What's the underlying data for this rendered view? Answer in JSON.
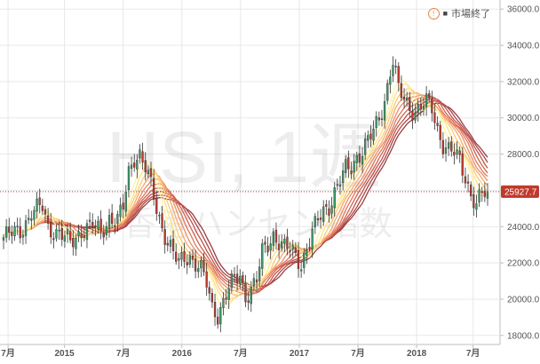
{
  "status": {
    "icon": "warning-icon",
    "square_icon": "square-icon",
    "text": "市場終了"
  },
  "watermark": {
    "line1": "HSI, 1週",
    "line2": "香港ハンセン指数"
  },
  "price_label": "25927.7",
  "colors": {
    "up": "#3d9b66",
    "down": "#c0392b",
    "price_line": "#c0392b",
    "price_box": "#c0392b",
    "grid": "#e8e8e8",
    "ribbon": [
      "#fff3a0",
      "#fde08b",
      "#fbc97a",
      "#f5a96c",
      "#ec8e63",
      "#e0765a",
      "#d06252",
      "#bf524b",
      "#ad4645",
      "#9d3d3f"
    ]
  },
  "chart_data": {
    "type": "candlestick",
    "title": "",
    "ylim": [
      17500,
      36500
    ],
    "y_ticks": [
      "18000.0",
      "20000.0",
      "22000.0",
      "24000.0",
      "26000.0",
      "28000.0",
      "30000.0",
      "32000.0",
      "34000.0",
      "36000.0"
    ],
    "x_ticks": [
      "7月",
      "2015",
      "7月",
      "2016",
      "7月",
      "2017",
      "7月",
      "2018",
      "7月"
    ],
    "last_price": 25927.7,
    "weekly_close_path": [
      [
        0,
        23400
      ],
      [
        6,
        23800
      ],
      [
        10,
        24700
      ],
      [
        14,
        25100
      ],
      [
        16,
        24000
      ],
      [
        20,
        23600
      ],
      [
        24,
        23100
      ],
      [
        28,
        23800
      ],
      [
        32,
        24000
      ],
      [
        35,
        23700
      ],
      [
        38,
        24500
      ],
      [
        41,
        24300
      ],
      [
        43,
        25000
      ],
      [
        45,
        27000
      ],
      [
        47,
        27900
      ],
      [
        49,
        28000
      ],
      [
        51,
        27200
      ],
      [
        53,
        26200
      ],
      [
        55,
        25000
      ],
      [
        57,
        24000
      ],
      [
        59,
        23200
      ],
      [
        61,
        22500
      ],
      [
        63,
        21900
      ],
      [
        65,
        22300
      ],
      [
        67,
        22400
      ],
      [
        69,
        22000
      ],
      [
        71,
        21600
      ],
      [
        73,
        20800
      ],
      [
        75,
        19500
      ],
      [
        77,
        19200
      ],
      [
        79,
        19900
      ],
      [
        81,
        20600
      ],
      [
        83,
        21000
      ],
      [
        85,
        21300
      ],
      [
        87,
        20200
      ],
      [
        89,
        20600
      ],
      [
        91,
        21000
      ],
      [
        93,
        22500
      ],
      [
        95,
        23000
      ],
      [
        97,
        23600
      ],
      [
        99,
        23200
      ],
      [
        101,
        22800
      ],
      [
        103,
        22700
      ],
      [
        105,
        22400
      ],
      [
        107,
        22000
      ],
      [
        109,
        22800
      ],
      [
        111,
        23600
      ],
      [
        113,
        24300
      ],
      [
        115,
        24900
      ],
      [
        117,
        25200
      ],
      [
        119,
        25900
      ],
      [
        121,
        26500
      ],
      [
        123,
        27100
      ],
      [
        125,
        27300
      ],
      [
        127,
        27900
      ],
      [
        129,
        28200
      ],
      [
        131,
        28700
      ],
      [
        133,
        29200
      ],
      [
        135,
        30000
      ],
      [
        137,
        31000
      ],
      [
        139,
        32600
      ],
      [
        140,
        33100
      ],
      [
        142,
        31500
      ],
      [
        144,
        31000
      ],
      [
        146,
        30600
      ],
      [
        148,
        30400
      ],
      [
        150,
        30600
      ],
      [
        152,
        30800
      ],
      [
        154,
        30500
      ],
      [
        156,
        29400
      ],
      [
        158,
        28600
      ],
      [
        160,
        28200
      ],
      [
        162,
        28000
      ],
      [
        164,
        27600
      ],
      [
        166,
        26800
      ],
      [
        168,
        25800
      ],
      [
        170,
        25200
      ],
      [
        172,
        25700
      ],
      [
        174,
        25900
      ]
    ]
  }
}
